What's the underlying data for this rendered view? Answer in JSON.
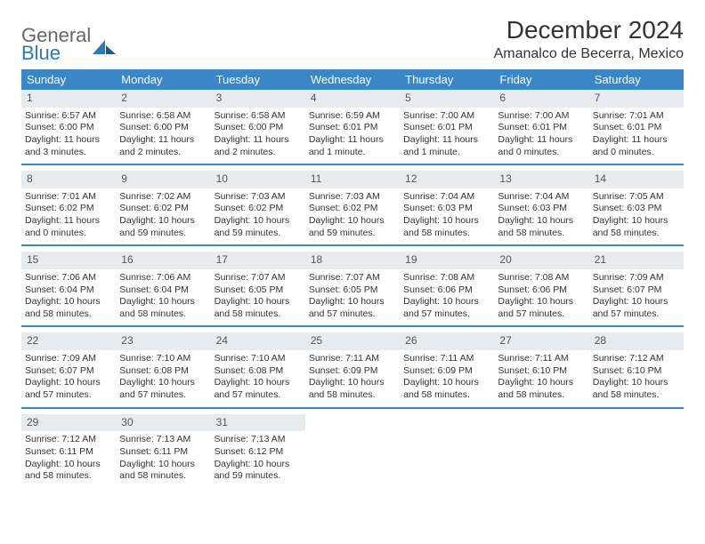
{
  "logo": {
    "line1": "General",
    "line2": "Blue"
  },
  "title": "December 2024",
  "subtitle": "Amanalco de Becerra, Mexico",
  "colors": {
    "header_bg": "#3a87c8",
    "header_text": "#ffffff",
    "daynum_bg": "#e8ebee",
    "border": "#3a87c8",
    "logo_accent": "#2f78b7"
  },
  "day_headers": [
    "Sunday",
    "Monday",
    "Tuesday",
    "Wednesday",
    "Thursday",
    "Friday",
    "Saturday"
  ],
  "weeks": [
    [
      {
        "num": "1",
        "sunrise": "Sunrise: 6:57 AM",
        "sunset": "Sunset: 6:00 PM",
        "daylight": "Daylight: 11 hours and 3 minutes."
      },
      {
        "num": "2",
        "sunrise": "Sunrise: 6:58 AM",
        "sunset": "Sunset: 6:00 PM",
        "daylight": "Daylight: 11 hours and 2 minutes."
      },
      {
        "num": "3",
        "sunrise": "Sunrise: 6:58 AM",
        "sunset": "Sunset: 6:00 PM",
        "daylight": "Daylight: 11 hours and 2 minutes."
      },
      {
        "num": "4",
        "sunrise": "Sunrise: 6:59 AM",
        "sunset": "Sunset: 6:01 PM",
        "daylight": "Daylight: 11 hours and 1 minute."
      },
      {
        "num": "5",
        "sunrise": "Sunrise: 7:00 AM",
        "sunset": "Sunset: 6:01 PM",
        "daylight": "Daylight: 11 hours and 1 minute."
      },
      {
        "num": "6",
        "sunrise": "Sunrise: 7:00 AM",
        "sunset": "Sunset: 6:01 PM",
        "daylight": "Daylight: 11 hours and 0 minutes."
      },
      {
        "num": "7",
        "sunrise": "Sunrise: 7:01 AM",
        "sunset": "Sunset: 6:01 PM",
        "daylight": "Daylight: 11 hours and 0 minutes."
      }
    ],
    [
      {
        "num": "8",
        "sunrise": "Sunrise: 7:01 AM",
        "sunset": "Sunset: 6:02 PM",
        "daylight": "Daylight: 11 hours and 0 minutes."
      },
      {
        "num": "9",
        "sunrise": "Sunrise: 7:02 AM",
        "sunset": "Sunset: 6:02 PM",
        "daylight": "Daylight: 10 hours and 59 minutes."
      },
      {
        "num": "10",
        "sunrise": "Sunrise: 7:03 AM",
        "sunset": "Sunset: 6:02 PM",
        "daylight": "Daylight: 10 hours and 59 minutes."
      },
      {
        "num": "11",
        "sunrise": "Sunrise: 7:03 AM",
        "sunset": "Sunset: 6:02 PM",
        "daylight": "Daylight: 10 hours and 59 minutes."
      },
      {
        "num": "12",
        "sunrise": "Sunrise: 7:04 AM",
        "sunset": "Sunset: 6:03 PM",
        "daylight": "Daylight: 10 hours and 58 minutes."
      },
      {
        "num": "13",
        "sunrise": "Sunrise: 7:04 AM",
        "sunset": "Sunset: 6:03 PM",
        "daylight": "Daylight: 10 hours and 58 minutes."
      },
      {
        "num": "14",
        "sunrise": "Sunrise: 7:05 AM",
        "sunset": "Sunset: 6:03 PM",
        "daylight": "Daylight: 10 hours and 58 minutes."
      }
    ],
    [
      {
        "num": "15",
        "sunrise": "Sunrise: 7:06 AM",
        "sunset": "Sunset: 6:04 PM",
        "daylight": "Daylight: 10 hours and 58 minutes."
      },
      {
        "num": "16",
        "sunrise": "Sunrise: 7:06 AM",
        "sunset": "Sunset: 6:04 PM",
        "daylight": "Daylight: 10 hours and 58 minutes."
      },
      {
        "num": "17",
        "sunrise": "Sunrise: 7:07 AM",
        "sunset": "Sunset: 6:05 PM",
        "daylight": "Daylight: 10 hours and 58 minutes."
      },
      {
        "num": "18",
        "sunrise": "Sunrise: 7:07 AM",
        "sunset": "Sunset: 6:05 PM",
        "daylight": "Daylight: 10 hours and 57 minutes."
      },
      {
        "num": "19",
        "sunrise": "Sunrise: 7:08 AM",
        "sunset": "Sunset: 6:06 PM",
        "daylight": "Daylight: 10 hours and 57 minutes."
      },
      {
        "num": "20",
        "sunrise": "Sunrise: 7:08 AM",
        "sunset": "Sunset: 6:06 PM",
        "daylight": "Daylight: 10 hours and 57 minutes."
      },
      {
        "num": "21",
        "sunrise": "Sunrise: 7:09 AM",
        "sunset": "Sunset: 6:07 PM",
        "daylight": "Daylight: 10 hours and 57 minutes."
      }
    ],
    [
      {
        "num": "22",
        "sunrise": "Sunrise: 7:09 AM",
        "sunset": "Sunset: 6:07 PM",
        "daylight": "Daylight: 10 hours and 57 minutes."
      },
      {
        "num": "23",
        "sunrise": "Sunrise: 7:10 AM",
        "sunset": "Sunset: 6:08 PM",
        "daylight": "Daylight: 10 hours and 57 minutes."
      },
      {
        "num": "24",
        "sunrise": "Sunrise: 7:10 AM",
        "sunset": "Sunset: 6:08 PM",
        "daylight": "Daylight: 10 hours and 57 minutes."
      },
      {
        "num": "25",
        "sunrise": "Sunrise: 7:11 AM",
        "sunset": "Sunset: 6:09 PM",
        "daylight": "Daylight: 10 hours and 58 minutes."
      },
      {
        "num": "26",
        "sunrise": "Sunrise: 7:11 AM",
        "sunset": "Sunset: 6:09 PM",
        "daylight": "Daylight: 10 hours and 58 minutes."
      },
      {
        "num": "27",
        "sunrise": "Sunrise: 7:11 AM",
        "sunset": "Sunset: 6:10 PM",
        "daylight": "Daylight: 10 hours and 58 minutes."
      },
      {
        "num": "28",
        "sunrise": "Sunrise: 7:12 AM",
        "sunset": "Sunset: 6:10 PM",
        "daylight": "Daylight: 10 hours and 58 minutes."
      }
    ],
    [
      {
        "num": "29",
        "sunrise": "Sunrise: 7:12 AM",
        "sunset": "Sunset: 6:11 PM",
        "daylight": "Daylight: 10 hours and 58 minutes."
      },
      {
        "num": "30",
        "sunrise": "Sunrise: 7:13 AM",
        "sunset": "Sunset: 6:11 PM",
        "daylight": "Daylight: 10 hours and 58 minutes."
      },
      {
        "num": "31",
        "sunrise": "Sunrise: 7:13 AM",
        "sunset": "Sunset: 6:12 PM",
        "daylight": "Daylight: 10 hours and 59 minutes."
      },
      null,
      null,
      null,
      null
    ]
  ]
}
